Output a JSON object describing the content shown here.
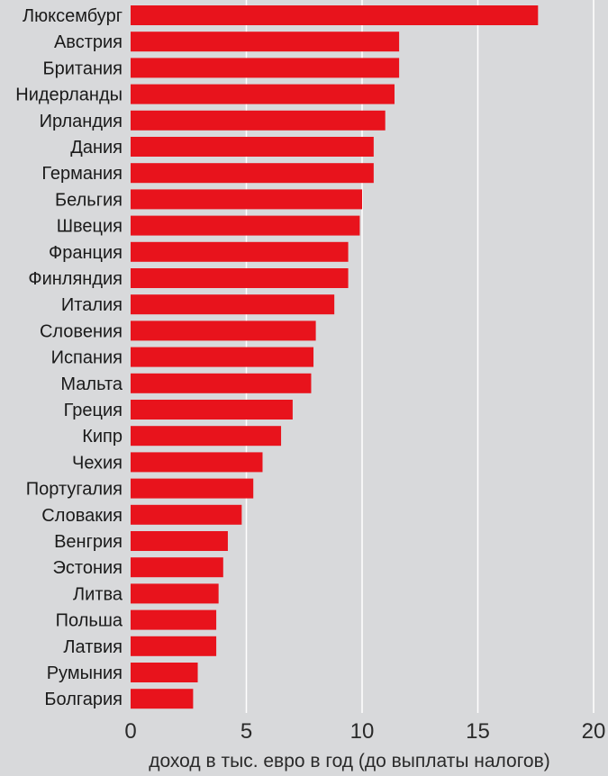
{
  "chart_data": {
    "type": "bar",
    "orientation": "horizontal",
    "categories": [
      "Люксембург",
      "Австрия",
      "Британия",
      "Нидерланды",
      "Ирландия",
      "Дания",
      "Германия",
      "Бельгия",
      "Швеция",
      "Франция",
      "Финляндия",
      "Италия",
      "Словения",
      "Испания",
      "Мальта",
      "Греция",
      "Кипр",
      "Чехия",
      "Португалия",
      "Словакия",
      "Венгрия",
      "Эстония",
      "Литва",
      "Польша",
      "Латвия",
      "Румыния",
      "Болгария"
    ],
    "values": [
      17.6,
      11.6,
      11.6,
      11.4,
      11.0,
      10.5,
      10.5,
      10.0,
      9.9,
      9.4,
      9.4,
      8.8,
      8.0,
      7.9,
      7.8,
      7.0,
      6.5,
      5.7,
      5.3,
      4.8,
      4.2,
      4.0,
      3.8,
      3.7,
      3.7,
      2.9,
      2.7
    ],
    "xlabel": "доход в тыс. евро в год (до выплаты налогов)",
    "ylabel": "",
    "title": "",
    "xlim": [
      0,
      20
    ],
    "xticks": [
      "0",
      "5",
      "10",
      "15",
      "20"
    ],
    "grid": true,
    "bar_color": "#e8131c",
    "grid_color": "#ffffff",
    "background_color": "#d8d9db"
  }
}
